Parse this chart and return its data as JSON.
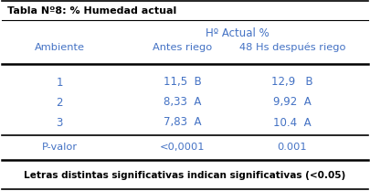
{
  "title": "Tabla Nº8: % Humedad actual",
  "col_header_group": "Hº Actual %",
  "col_headers": [
    "Ambiente",
    "Antes riego",
    "48 Hs después riego"
  ],
  "rows": [
    [
      "1",
      "11,5  B",
      "12,9   B"
    ],
    [
      "2",
      "8,33  A",
      "9,92  A"
    ],
    [
      "3",
      "7,83  A",
      "10.4  A"
    ]
  ],
  "pvalue_row": [
    "P-valor",
    "<0,0001",
    "0.001"
  ],
  "footer": "Letras distintas significativas indican significativas (<0.05)",
  "text_color": "#4472c4",
  "title_color": "#000000",
  "footer_color": "#000000",
  "bg_color": "#ffffff",
  "line_color": "#000000"
}
